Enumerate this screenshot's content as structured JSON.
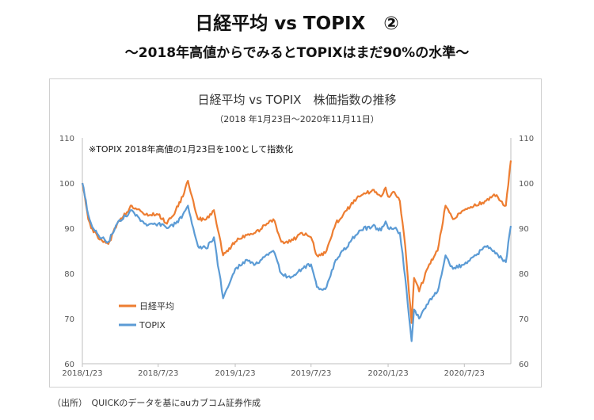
{
  "title": "日経平均 vs TOPIX　②",
  "subtitle": "～2018年高値からでみるとTOPIXはまだ90%の水準～",
  "source": "（出所）　QUICKのデータを基にauカブコム証券作成",
  "chart_data": {
    "type": "line",
    "title": "日経平均 vs TOPIX　株価指数の推移",
    "subtitle": "（2018 年1月23日～2020年11月11日）",
    "note": "※TOPIX 2018年高値の1月23日を100として指数化",
    "x_ticks": [
      "2018/1/23",
      "2018/7/23",
      "2019/1/23",
      "2019/7/23",
      "2020/1/23",
      "2020/7/23"
    ],
    "ylim": [
      60,
      110
    ],
    "y_ticks": [
      60,
      70,
      80,
      90,
      100,
      110
    ],
    "y_tick_labels": [
      "60",
      "70",
      "80",
      "90",
      "100",
      "110"
    ],
    "y_axis_right": true,
    "legend_position": "bottom-left",
    "colors": {
      "nikkei": "#ED7D31",
      "topix": "#5B9BD5"
    },
    "series": [
      {
        "name": "日経平均",
        "color": "#ED7D31",
        "points": [
          [
            "2018-01-23",
            100
          ],
          [
            "2018-02-06",
            92
          ],
          [
            "2018-02-13",
            90
          ],
          [
            "2018-03-05",
            87.5
          ],
          [
            "2018-03-26",
            86.5
          ],
          [
            "2018-04-16",
            91
          ],
          [
            "2018-05-21",
            95
          ],
          [
            "2018-06-20",
            93
          ],
          [
            "2018-07-23",
            93
          ],
          [
            "2018-08-13",
            91
          ],
          [
            "2018-09-03",
            94
          ],
          [
            "2018-09-20",
            97
          ],
          [
            "2018-10-02",
            100.5
          ],
          [
            "2018-10-15",
            96
          ],
          [
            "2018-10-26",
            92
          ],
          [
            "2018-11-15",
            92
          ],
          [
            "2018-12-03",
            94
          ],
          [
            "2018-12-25",
            84
          ],
          [
            "2019-01-23",
            87
          ],
          [
            "2019-02-20",
            88.5
          ],
          [
            "2019-03-12",
            89
          ],
          [
            "2019-04-24",
            92
          ],
          [
            "2019-05-13",
            87
          ],
          [
            "2019-06-04",
            87
          ],
          [
            "2019-07-01",
            89
          ],
          [
            "2019-07-23",
            88
          ],
          [
            "2019-08-06",
            84
          ],
          [
            "2019-08-26",
            84.5
          ],
          [
            "2019-09-20",
            91
          ],
          [
            "2019-10-25",
            95
          ],
          [
            "2019-11-15",
            97
          ],
          [
            "2019-12-17",
            98.5
          ],
          [
            "2020-01-06",
            97
          ],
          [
            "2020-01-17",
            99
          ],
          [
            "2020-01-23",
            97
          ],
          [
            "2020-02-07",
            98
          ],
          [
            "2020-02-20",
            96
          ],
          [
            "2020-03-04",
            86
          ],
          [
            "2020-03-19",
            69
          ],
          [
            "2020-03-25",
            79
          ],
          [
            "2020-04-06",
            76
          ],
          [
            "2020-04-30",
            82
          ],
          [
            "2020-05-20",
            85
          ],
          [
            "2020-06-08",
            95
          ],
          [
            "2020-06-26",
            92
          ],
          [
            "2020-07-23",
            94
          ],
          [
            "2020-08-20",
            95
          ],
          [
            "2020-09-10",
            96
          ],
          [
            "2020-10-02",
            97.5
          ],
          [
            "2020-10-30",
            95
          ],
          [
            "2020-11-11",
            105
          ]
        ]
      },
      {
        "name": "TOPIX",
        "color": "#5B9BD5",
        "points": [
          [
            "2018-01-23",
            100
          ],
          [
            "2018-02-06",
            93
          ],
          [
            "2018-02-13",
            91
          ],
          [
            "2018-03-05",
            88
          ],
          [
            "2018-03-26",
            87
          ],
          [
            "2018-04-16",
            91
          ],
          [
            "2018-05-21",
            94
          ],
          [
            "2018-06-20",
            91
          ],
          [
            "2018-07-23",
            91
          ],
          [
            "2018-08-13",
            90
          ],
          [
            "2018-09-03",
            91
          ],
          [
            "2018-09-20",
            93
          ],
          [
            "2018-10-02",
            95
          ],
          [
            "2018-10-15",
            90
          ],
          [
            "2018-10-26",
            86
          ],
          [
            "2018-11-15",
            85.5
          ],
          [
            "2018-12-03",
            88
          ],
          [
            "2018-12-25",
            74.5
          ],
          [
            "2019-01-23",
            81
          ],
          [
            "2019-02-20",
            83
          ],
          [
            "2019-03-12",
            82
          ],
          [
            "2019-04-24",
            85
          ],
          [
            "2019-05-13",
            80
          ],
          [
            "2019-06-04",
            79
          ],
          [
            "2019-07-01",
            81
          ],
          [
            "2019-07-23",
            82
          ],
          [
            "2019-08-06",
            77
          ],
          [
            "2019-08-26",
            76.5
          ],
          [
            "2019-09-20",
            83
          ],
          [
            "2019-10-25",
            87
          ],
          [
            "2019-11-15",
            89.5
          ],
          [
            "2019-12-17",
            90.5
          ],
          [
            "2020-01-06",
            89.5
          ],
          [
            "2020-01-17",
            91.5
          ],
          [
            "2020-01-23",
            90
          ],
          [
            "2020-02-07",
            90
          ],
          [
            "2020-02-20",
            89
          ],
          [
            "2020-03-04",
            79
          ],
          [
            "2020-03-19",
            65
          ],
          [
            "2020-03-25",
            72
          ],
          [
            "2020-04-06",
            70
          ],
          [
            "2020-04-30",
            74
          ],
          [
            "2020-05-20",
            76
          ],
          [
            "2020-06-08",
            84
          ],
          [
            "2020-06-26",
            81
          ],
          [
            "2020-07-23",
            82
          ],
          [
            "2020-08-20",
            84
          ],
          [
            "2020-09-10",
            86
          ],
          [
            "2020-10-02",
            85
          ],
          [
            "2020-10-30",
            82.5
          ],
          [
            "2020-11-11",
            90.5
          ]
        ]
      }
    ]
  }
}
